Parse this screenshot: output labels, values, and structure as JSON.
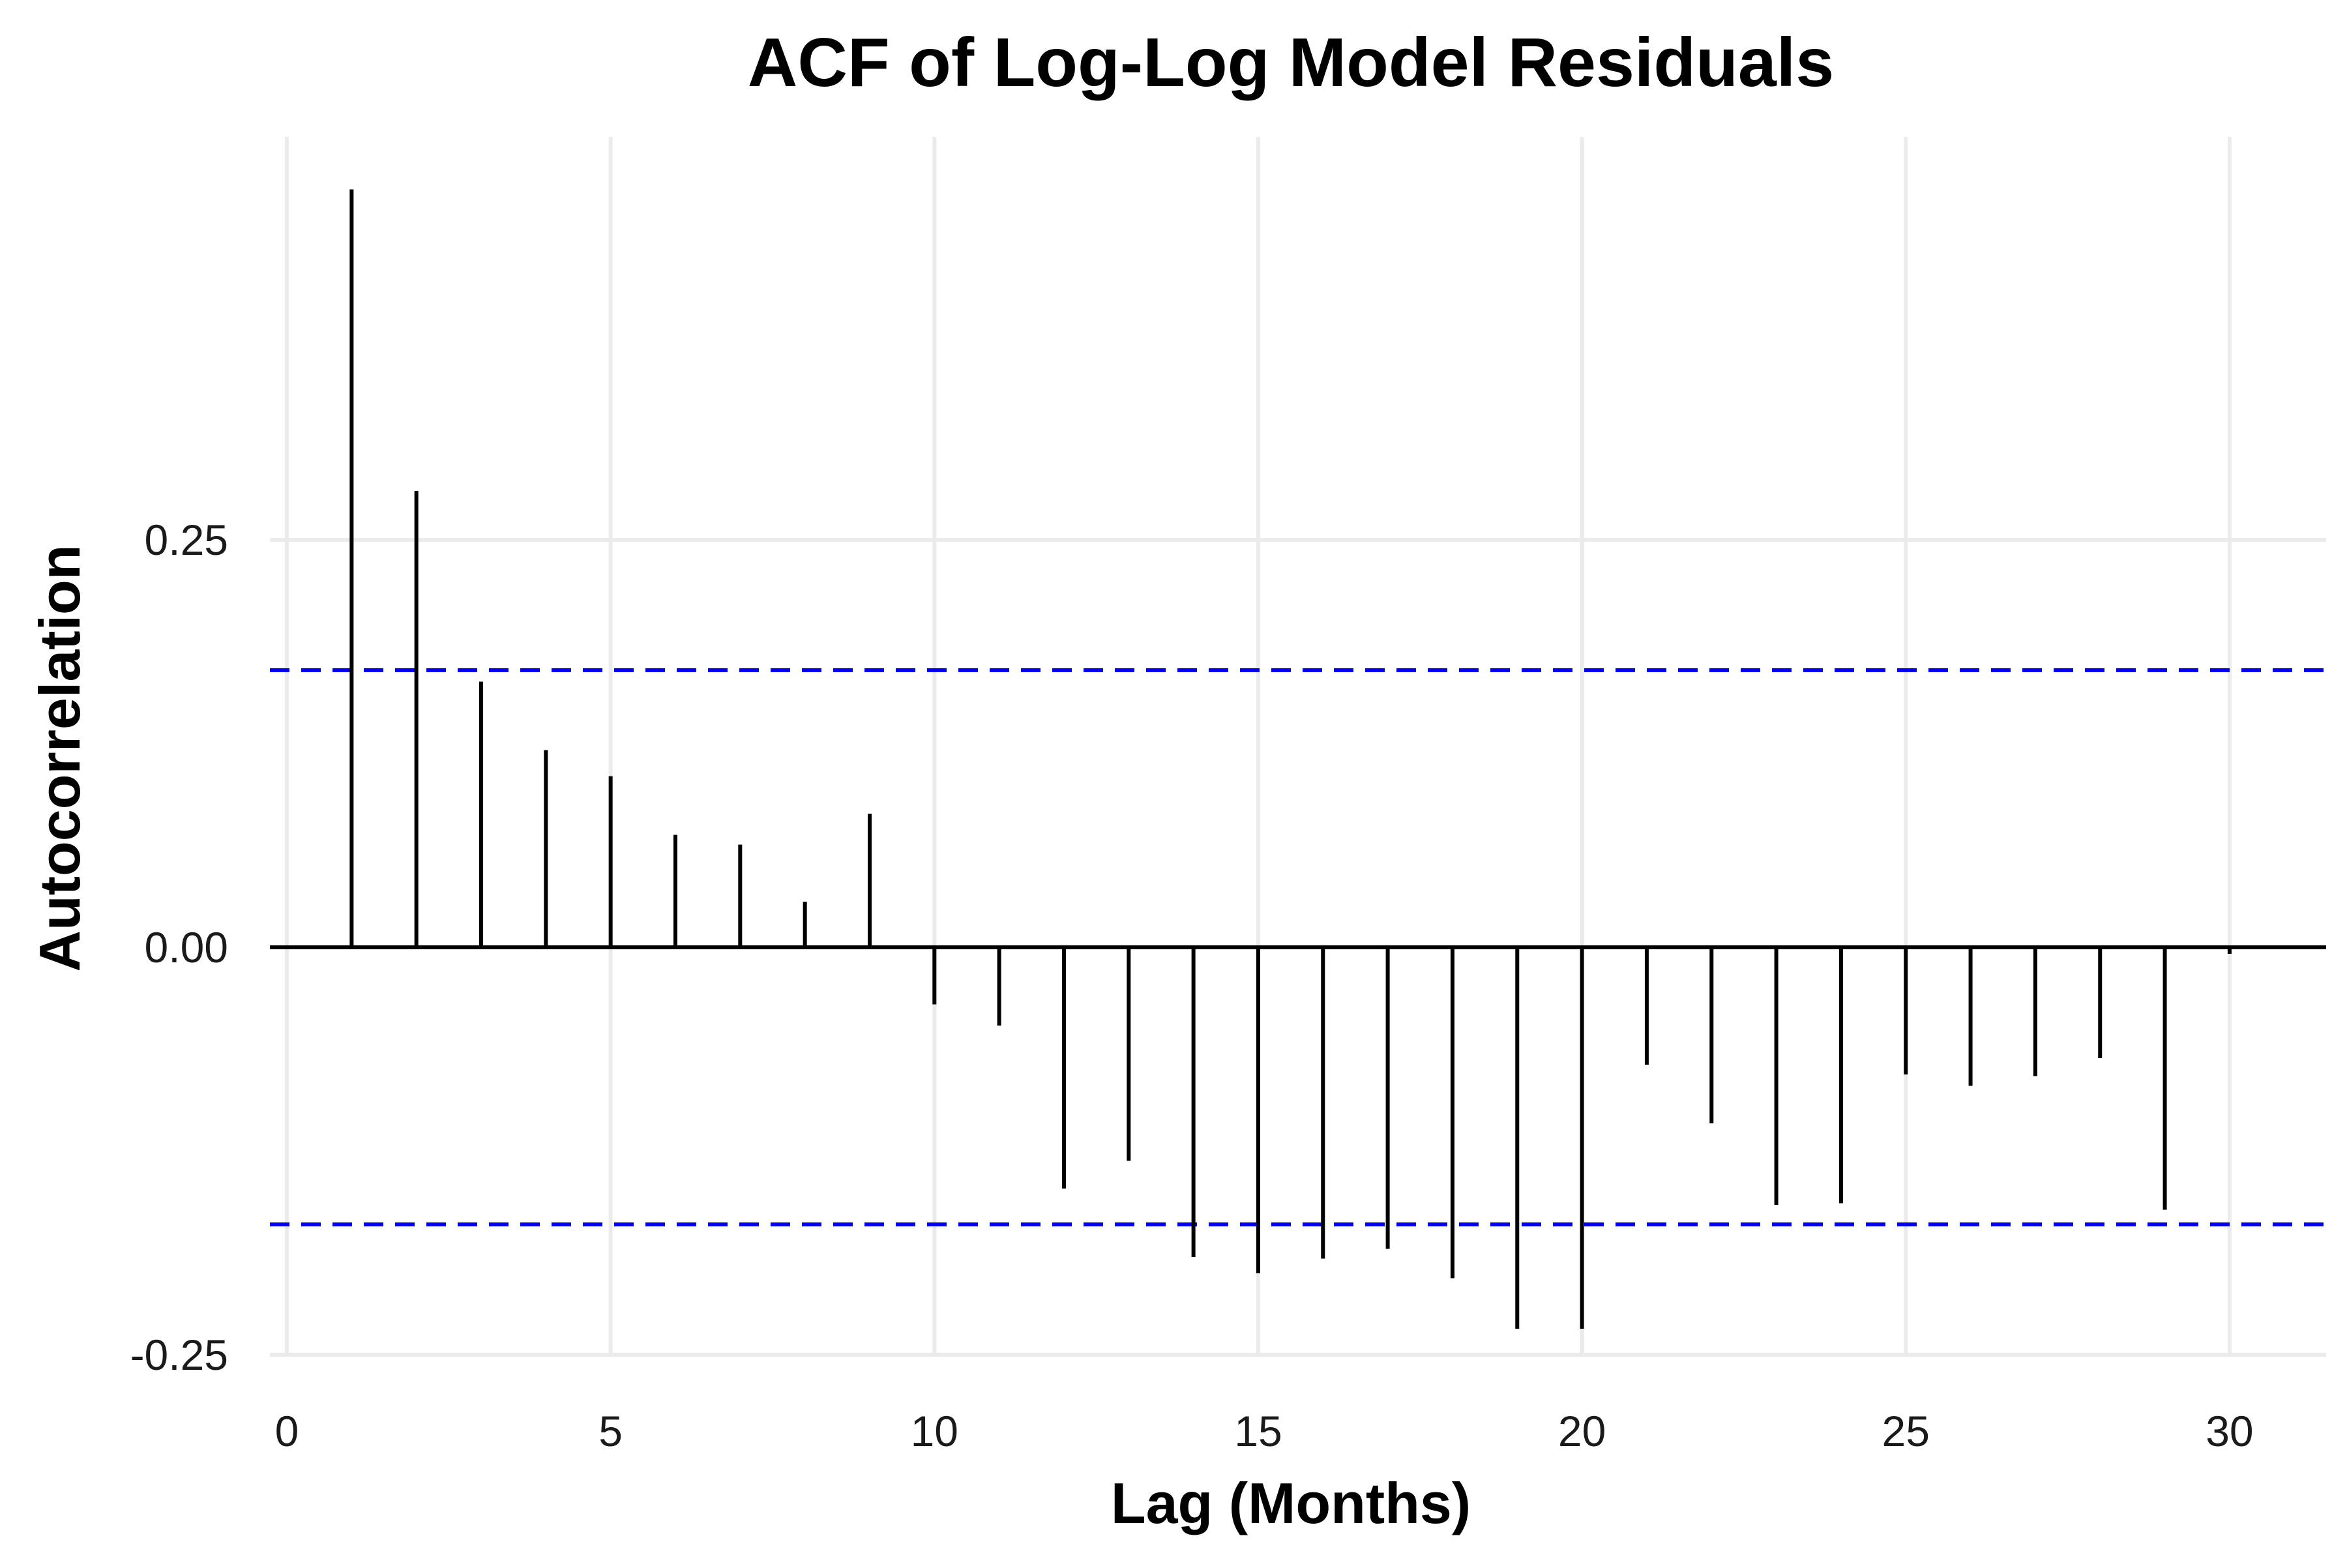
{
  "chart_data": {
    "type": "bar",
    "title": "ACF of Log-Log Model Residuals",
    "xlabel": "Lag (Months)",
    "ylabel": "Autocorrelation",
    "xlim": [
      0,
      31.5
    ],
    "ylim": [
      -0.25,
      0.46
    ],
    "x_ticks": [
      {
        "value": 0,
        "label": "0"
      },
      {
        "value": 5,
        "label": "5"
      },
      {
        "value": 10,
        "label": "10"
      },
      {
        "value": 15,
        "label": "15"
      },
      {
        "value": 20,
        "label": "20"
      },
      {
        "value": 25,
        "label": "25"
      },
      {
        "value": 30,
        "label": "30"
      }
    ],
    "y_ticks": [
      {
        "value": 0.25,
        "label": "0.25"
      },
      {
        "value": 0.0,
        "label": "0.00"
      },
      {
        "value": -0.25,
        "label": "-0.25"
      }
    ],
    "grid": true,
    "confidence_bounds": [
      0.17,
      -0.17
    ],
    "lags": [
      1,
      2,
      3,
      4,
      5,
      6,
      7,
      8,
      9,
      10,
      11,
      12,
      13,
      14,
      15,
      16,
      17,
      18,
      19,
      20,
      21,
      22,
      23,
      24,
      25,
      26,
      27,
      28,
      29,
      30
    ],
    "acf": [
      0.465,
      0.28,
      0.163,
      0.121,
      0.105,
      0.069,
      0.063,
      0.028,
      0.082,
      -0.035,
      -0.048,
      -0.148,
      -0.131,
      -0.19,
      -0.2,
      -0.191,
      -0.185,
      -0.203,
      -0.234,
      -0.234,
      -0.072,
      -0.108,
      -0.158,
      -0.157,
      -0.078,
      -0.085,
      -0.079,
      -0.068,
      -0.161,
      -0.004
    ]
  },
  "colors": {
    "bar": "#000000",
    "zero_line": "#000000",
    "confidence": "#0000ee",
    "grid": "#ebebeb"
  }
}
